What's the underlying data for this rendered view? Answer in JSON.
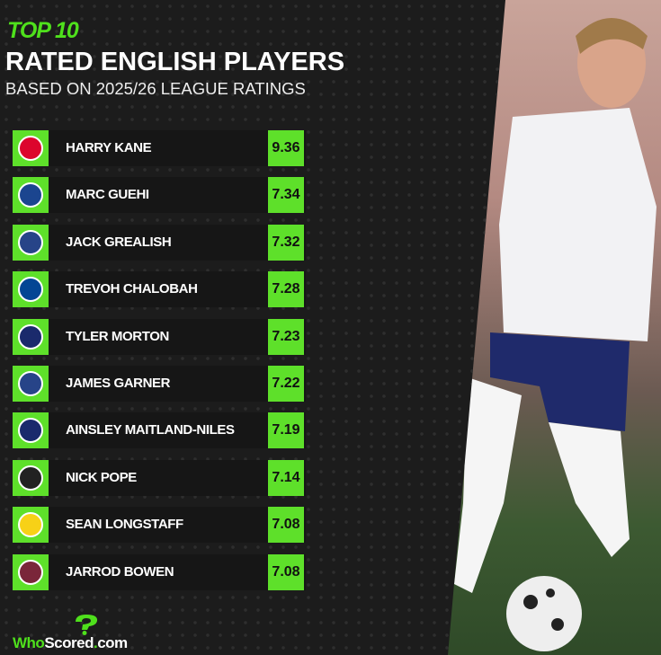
{
  "header": {
    "top": "TOP 10",
    "title": "RATED ENGLISH PLAYERS",
    "subtitle": "BASED ON 2025/26 LEAGUE RATINGS"
  },
  "players": [
    {
      "name": "HARRY KANE",
      "rating": "9.36",
      "club_icon": "bayern-munich-crest",
      "color": "#dc052d"
    },
    {
      "name": "MARC GUEHI",
      "rating": "7.34",
      "club_icon": "crystal-palace-crest",
      "color": "#1b458f"
    },
    {
      "name": "JACK GREALISH",
      "rating": "7.32",
      "club_icon": "everton-crest",
      "color": "#274488"
    },
    {
      "name": "TREVOH CHALOBAH",
      "rating": "7.28",
      "club_icon": "chelsea-crest",
      "color": "#034694"
    },
    {
      "name": "TYLER MORTON",
      "rating": "7.23",
      "club_icon": "lyon-crest",
      "color": "#1a2a6c"
    },
    {
      "name": "JAMES GARNER",
      "rating": "7.22",
      "club_icon": "everton-crest",
      "color": "#274488"
    },
    {
      "name": "AINSLEY MAITLAND-NILES",
      "rating": "7.19",
      "club_icon": "lyon-crest",
      "color": "#1a2a6c"
    },
    {
      "name": "NICK POPE",
      "rating": "7.14",
      "club_icon": "newcastle-crest",
      "color": "#222222"
    },
    {
      "name": "SEAN LONGSTAFF",
      "rating": "7.08",
      "club_icon": "leeds-crest",
      "color": "#f7d117"
    },
    {
      "name": "JARROD BOWEN",
      "rating": "7.08",
      "club_icon": "west-ham-crest",
      "color": "#7a263a"
    }
  ],
  "brand": {
    "logo": "WhoScored.com",
    "accent": "#5ee02a"
  }
}
